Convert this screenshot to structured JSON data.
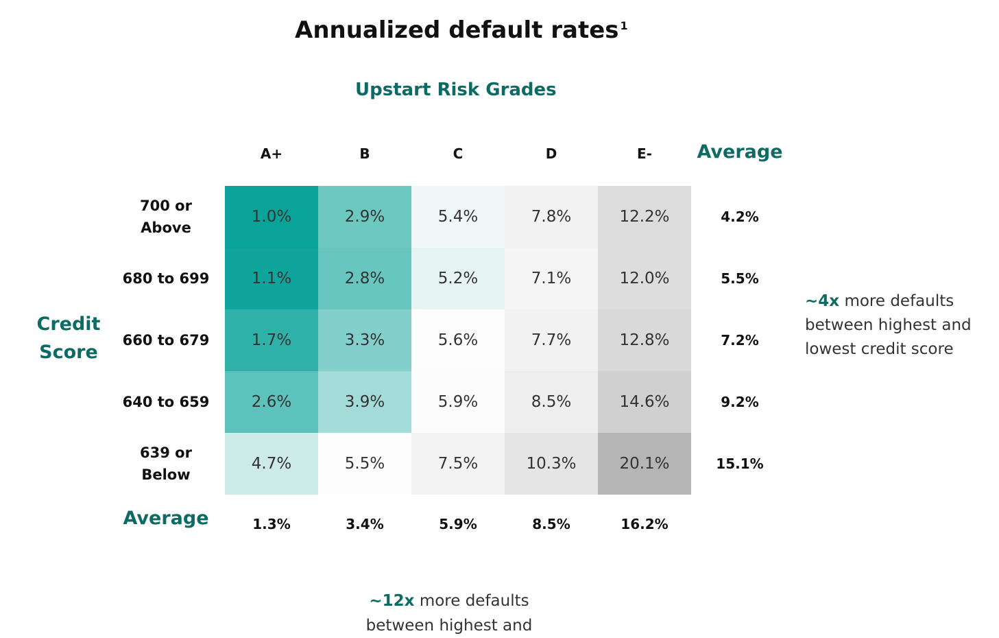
{
  "title": "Annualized default rates",
  "title_footnote": "1",
  "subtitle": "Upstart Risk Grades",
  "y_axis_title": [
    "Credit",
    "Score"
  ],
  "average_label": "Average",
  "annotations": {
    "right": {
      "emphasis": "~4x",
      "text_first_line": "more defaults",
      "text_rest": "between highest and lowest credit score"
    },
    "bottom": {
      "emphasis": "~12x",
      "text_first_line": "more defaults",
      "text_rest": "between highest and"
    }
  },
  "colors": {
    "accent": "#0d6b63",
    "heatmap_teal_dark": "#0aa39a",
    "heatmap_grey_dark": "#b5b5b5"
  },
  "chart_data": {
    "type": "heatmap",
    "title": "Annualized default rates",
    "xlabel": "Upstart Risk Grades",
    "ylabel": "Credit Score",
    "columns": [
      "A+",
      "B",
      "C",
      "D",
      "E-"
    ],
    "rows": [
      "700 or Above",
      "680 to 699",
      "660 to 679",
      "640 to 659",
      "639 or Below"
    ],
    "row_label_lines": [
      [
        "700 or",
        "Above"
      ],
      [
        "680 to 699"
      ],
      [
        "660 to 679"
      ],
      [
        "640 to 659"
      ],
      [
        "639 or",
        "Below"
      ]
    ],
    "values": [
      [
        1.0,
        2.9,
        5.4,
        7.8,
        12.2
      ],
      [
        1.1,
        2.8,
        5.2,
        7.1,
        12.0
      ],
      [
        1.7,
        3.3,
        5.6,
        7.7,
        12.8
      ],
      [
        2.6,
        3.9,
        5.9,
        8.5,
        14.6
      ],
      [
        4.7,
        5.5,
        7.5,
        10.3,
        20.1
      ]
    ],
    "cell_labels": [
      [
        "1.0%",
        "2.9%",
        "5.4%",
        "7.8%",
        "12.2%"
      ],
      [
        "1.1%",
        "2.8%",
        "5.2%",
        "7.1%",
        "12.0%"
      ],
      [
        "1.7%",
        "3.3%",
        "5.6%",
        "7.7%",
        "12.8%"
      ],
      [
        "2.6%",
        "3.9%",
        "5.9%",
        "8.5%",
        "14.6%"
      ],
      [
        "4.7%",
        "5.5%",
        "7.5%",
        "10.3%",
        "20.1%"
      ]
    ],
    "row_averages": [
      "4.2%",
      "5.5%",
      "7.2%",
      "9.2%",
      "15.1%"
    ],
    "column_averages": [
      "1.3%",
      "3.4%",
      "5.9%",
      "8.5%",
      "16.2%"
    ],
    "unit": "%"
  }
}
